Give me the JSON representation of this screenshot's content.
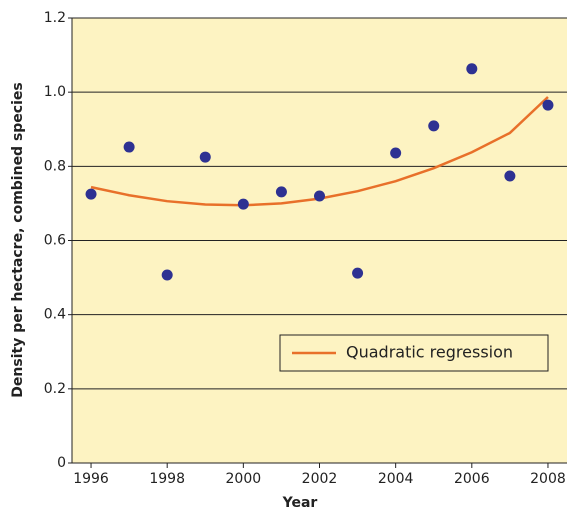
{
  "chart_data": {
    "type": "scatter",
    "x_label": "Year",
    "y_label": "Density per hectacre, combined species",
    "x": [
      1996,
      1997,
      1998,
      1999,
      2000,
      2001,
      2002,
      2003,
      2004,
      2005,
      2006,
      2007,
      2008
    ],
    "points": {
      "color": "#2e3192",
      "values": [
        0.725,
        0.852,
        0.507,
        0.825,
        0.698,
        0.731,
        0.72,
        0.512,
        0.836,
        0.909,
        1.063,
        0.774,
        0.965
      ]
    },
    "series": [
      {
        "name": "Quadratic regression",
        "color": "#e8702a",
        "values": [
          0.744,
          0.722,
          0.706,
          0.697,
          0.695,
          0.7,
          0.713,
          0.733,
          0.76,
          0.795,
          0.838,
          0.89,
          0.987
        ]
      }
    ],
    "xlim": [
      1995.5,
      2008.5
    ],
    "xticks": [
      1996,
      1998,
      2000,
      2002,
      2004,
      2006,
      2008
    ],
    "ylim": [
      0,
      1.2
    ],
    "yticks": [
      0,
      0.2,
      0.4,
      0.6,
      0.8,
      {
        "value": 1.0,
        "label": "1.0"
      },
      1.2
    ],
    "grid": true,
    "legend": "lower right",
    "background": "#fdf3c2"
  }
}
